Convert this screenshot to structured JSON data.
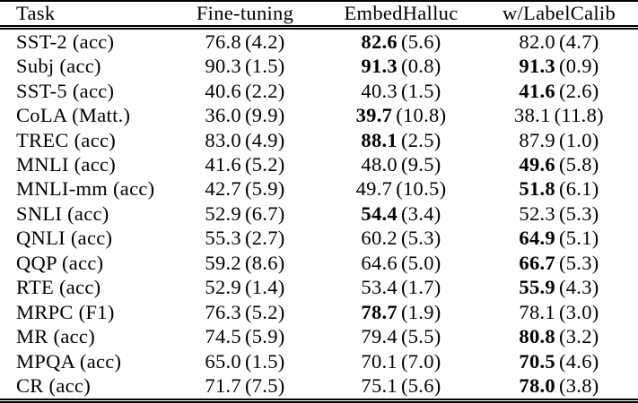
{
  "colors": {
    "background": "#ffffff",
    "text": "#000000",
    "rule": "#000000"
  },
  "table": {
    "headers": [
      "Task",
      "Fine-tuning",
      "EmbedHalluc",
      "w/LabelCalib"
    ],
    "rows": [
      {
        "task": "SST-2 (acc)",
        "cells": [
          {
            "score": "76.8",
            "std": "(4.2)",
            "bold": false
          },
          {
            "score": "82.6",
            "std": "(5.6)",
            "bold": true
          },
          {
            "score": "82.0",
            "std": "(4.7)",
            "bold": false
          }
        ]
      },
      {
        "task": "Subj (acc)",
        "cells": [
          {
            "score": "90.3",
            "std": "(1.5)",
            "bold": false
          },
          {
            "score": "91.3",
            "std": "(0.8)",
            "bold": true
          },
          {
            "score": "91.3",
            "std": "(0.9)",
            "bold": true
          }
        ]
      },
      {
        "task": "SST-5 (acc)",
        "cells": [
          {
            "score": "40.6",
            "std": "(2.2)",
            "bold": false
          },
          {
            "score": "40.3",
            "std": "(1.5)",
            "bold": false
          },
          {
            "score": "41.6",
            "std": "(2.6)",
            "bold": true
          }
        ]
      },
      {
        "task": "CoLA (Matt.)",
        "cells": [
          {
            "score": "36.0",
            "std": "(9.9)",
            "bold": false
          },
          {
            "score": "39.7",
            "std": "(10.8)",
            "bold": true
          },
          {
            "score": "38.1",
            "std": "(11.8)",
            "bold": false
          }
        ]
      },
      {
        "task": "TREC (acc)",
        "cells": [
          {
            "score": "83.0",
            "std": "(4.9)",
            "bold": false
          },
          {
            "score": "88.1",
            "std": "(2.5)",
            "bold": true
          },
          {
            "score": "87.9",
            "std": "(1.0)",
            "bold": false
          }
        ]
      },
      {
        "task": "MNLI (acc)",
        "cells": [
          {
            "score": "41.6",
            "std": "(5.2)",
            "bold": false
          },
          {
            "score": "48.0",
            "std": "(9.5)",
            "bold": false
          },
          {
            "score": "49.6",
            "std": "(5.8)",
            "bold": true
          }
        ]
      },
      {
        "task": "MNLI-mm (acc)",
        "cells": [
          {
            "score": "42.7",
            "std": "(5.9)",
            "bold": false
          },
          {
            "score": "49.7",
            "std": "(10.5)",
            "bold": false
          },
          {
            "score": "51.8",
            "std": "(6.1)",
            "bold": true
          }
        ]
      },
      {
        "task": "SNLI (acc)",
        "cells": [
          {
            "score": "52.9",
            "std": "(6.7)",
            "bold": false
          },
          {
            "score": "54.4",
            "std": "(3.4)",
            "bold": true
          },
          {
            "score": "52.3",
            "std": "(5.3)",
            "bold": false
          }
        ]
      },
      {
        "task": "QNLI (acc)",
        "cells": [
          {
            "score": "55.3",
            "std": "(2.7)",
            "bold": false
          },
          {
            "score": "60.2",
            "std": "(5.3)",
            "bold": false
          },
          {
            "score": "64.9",
            "std": "(5.1)",
            "bold": true
          }
        ]
      },
      {
        "task": "QQP (acc)",
        "cells": [
          {
            "score": "59.2",
            "std": "(8.6)",
            "bold": false
          },
          {
            "score": "64.6",
            "std": "(5.0)",
            "bold": false
          },
          {
            "score": "66.7",
            "std": "(5.3)",
            "bold": true
          }
        ]
      },
      {
        "task": "RTE (acc)",
        "cells": [
          {
            "score": "52.9",
            "std": "(1.4)",
            "bold": false
          },
          {
            "score": "53.4",
            "std": "(1.7)",
            "bold": false
          },
          {
            "score": "55.9",
            "std": "(4.3)",
            "bold": true
          }
        ]
      },
      {
        "task": "MRPC (F1)",
        "cells": [
          {
            "score": "76.3",
            "std": "(5.2)",
            "bold": false
          },
          {
            "score": "78.7",
            "std": "(1.9)",
            "bold": true
          },
          {
            "score": "78.1",
            "std": "(3.0)",
            "bold": false
          }
        ]
      },
      {
        "task": "MR (acc)",
        "cells": [
          {
            "score": "74.5",
            "std": "(5.9)",
            "bold": false
          },
          {
            "score": "79.4",
            "std": "(5.5)",
            "bold": false
          },
          {
            "score": "80.8",
            "std": "(3.2)",
            "bold": true
          }
        ]
      },
      {
        "task": "MPQA (acc)",
        "cells": [
          {
            "score": "65.0",
            "std": "(1.5)",
            "bold": false
          },
          {
            "score": "70.1",
            "std": "(7.0)",
            "bold": false
          },
          {
            "score": "70.5",
            "std": "(4.6)",
            "bold": true
          }
        ]
      },
      {
        "task": "CR (acc)",
        "cells": [
          {
            "score": "71.7",
            "std": "(7.5)",
            "bold": false
          },
          {
            "score": "75.1",
            "std": "(5.6)",
            "bold": false
          },
          {
            "score": "78.0",
            "std": "(3.8)",
            "bold": true
          }
        ]
      }
    ]
  }
}
